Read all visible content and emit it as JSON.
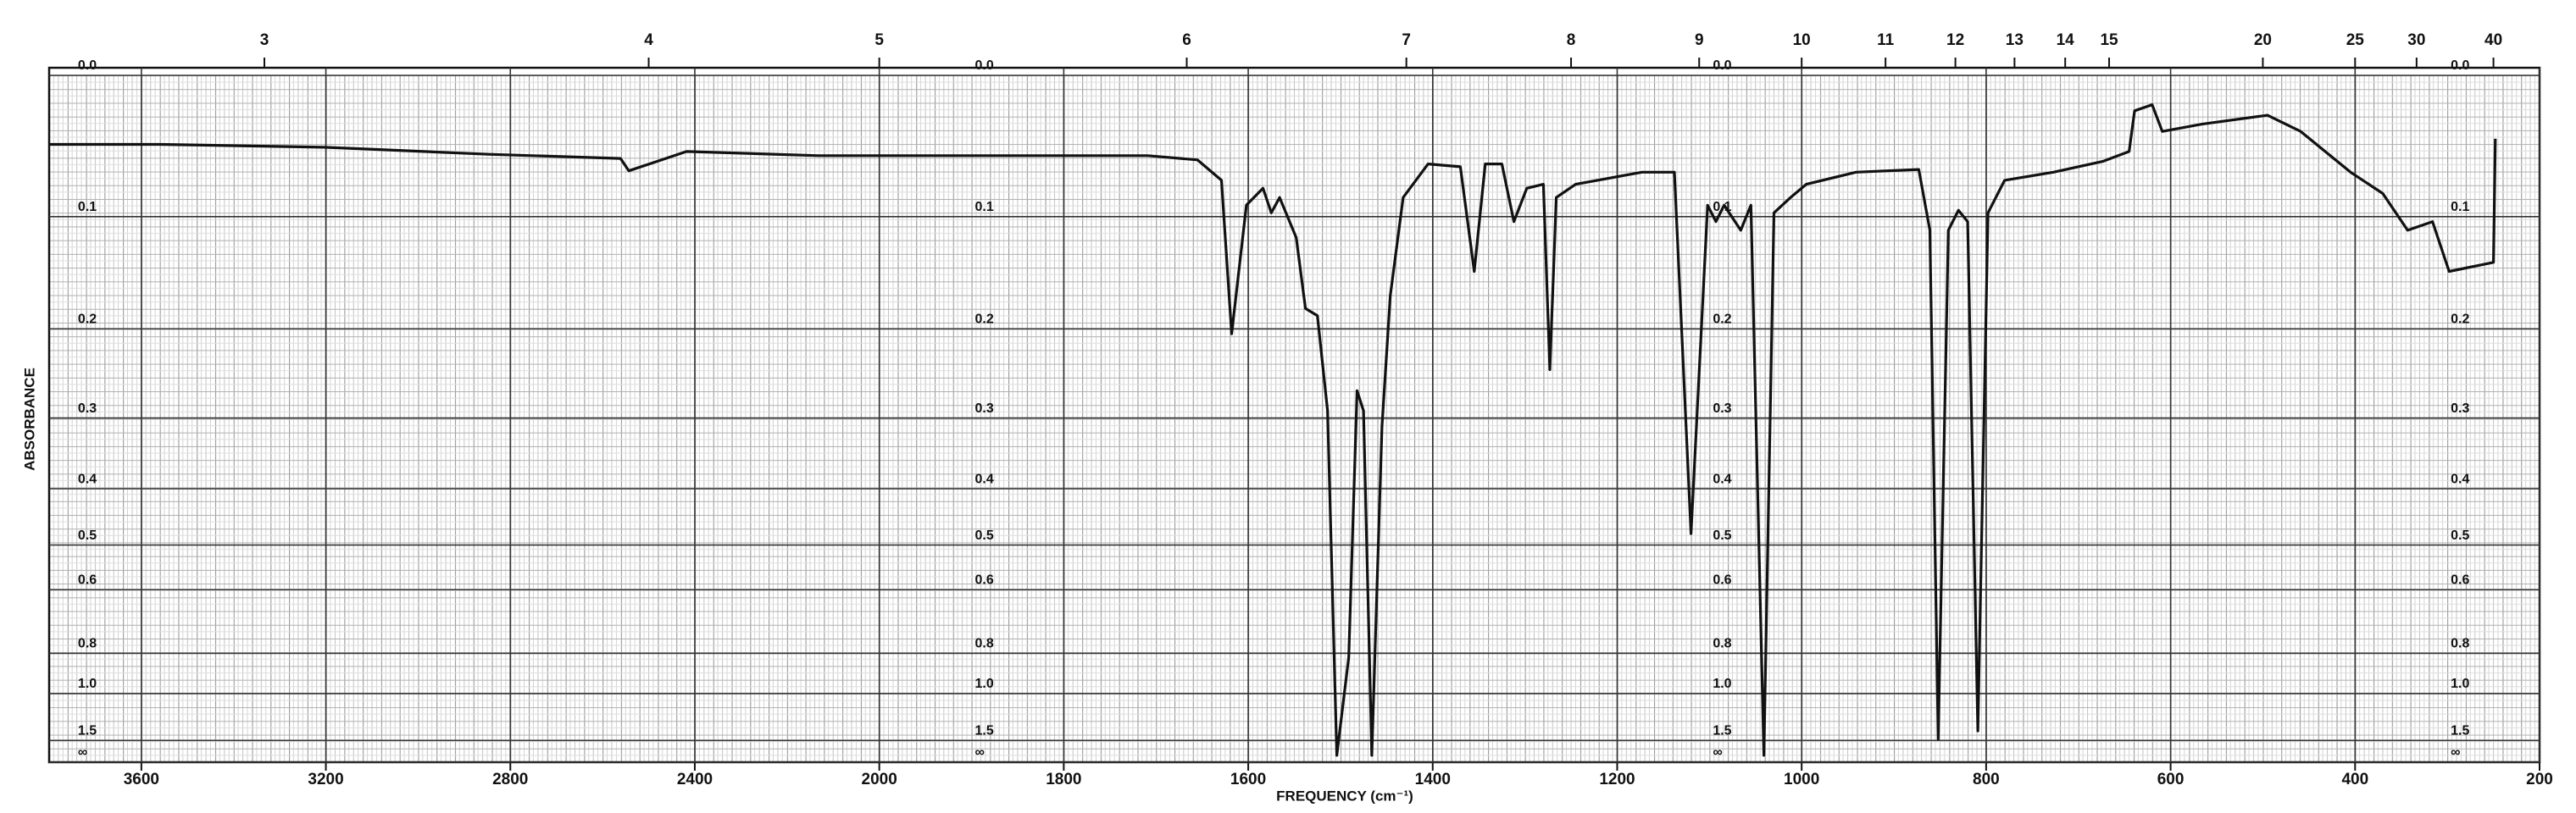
{
  "chart_data": {
    "type": "line",
    "x_label": "FREQUENCY (cm⁻¹)",
    "y_label": "ABSORBANCE",
    "xlim": [
      3800,
      200
    ],
    "xscale_break": 2000,
    "xticks": [
      3600,
      3200,
      2800,
      2400,
      2000,
      1800,
      1600,
      1400,
      1200,
      1000,
      800,
      600,
      400,
      200
    ],
    "x2ticks": [
      3,
      4,
      5,
      6,
      7,
      8,
      9,
      10,
      11,
      12,
      13,
      14,
      15,
      20,
      25,
      30,
      40
    ],
    "yscale": "absorbance",
    "ylim": [
      0,
      null
    ],
    "yticks": [
      {
        "value": 0,
        "label": "0.0"
      },
      0.1,
      0.2,
      0.3,
      0.4,
      0.5,
      0.6,
      0.8,
      {
        "value": 1,
        "label": "1.0"
      },
      1.5,
      {
        "value": null,
        "label": "∞"
      }
    ],
    "grid": true,
    "color": "#111111",
    "x": [
      3800,
      3560,
      3203,
      2846,
      2561,
      2543,
      2418,
      2132,
      1888,
      1709,
      1655,
      1629,
      1618,
      1602,
      1584,
      1575,
      1566,
      1548,
      1538,
      1525,
      1514,
      1504,
      1491,
      1482,
      1475,
      1466,
      1455,
      1446,
      1432,
      1405,
      1370,
      1355,
      1343,
      1325,
      1312,
      1298,
      1280,
      1273,
      1266,
      1245,
      1173,
      1138,
      1120,
      1102,
      1093,
      1084,
      1066,
      1055,
      1041,
      1030,
      1012,
      995,
      941,
      873,
      861,
      852,
      841,
      830,
      820,
      809,
      798,
      780,
      727,
      673,
      645,
      639,
      620,
      609,
      566,
      495,
      459,
      405,
      370,
      343,
      316,
      298,
      280,
      250,
      248
    ],
    "values": [
      0.046,
      0.046,
      0.048,
      0.053,
      0.056,
      0.065,
      0.051,
      0.054,
      0.054,
      0.054,
      0.057,
      0.072,
      0.205,
      0.091,
      0.078,
      0.097,
      0.085,
      0.117,
      0.18,
      0.187,
      0.291,
      2.0,
      0.815,
      0.267,
      0.291,
      2.0,
      0.311,
      0.168,
      0.085,
      0.06,
      0.062,
      0.146,
      0.06,
      0.06,
      0.104,
      0.078,
      0.075,
      0.243,
      0.085,
      0.075,
      0.066,
      0.066,
      0.478,
      0.091,
      0.104,
      0.091,
      0.111,
      0.091,
      2.0,
      0.097,
      0.085,
      0.075,
      0.066,
      0.064,
      0.111,
      1.475,
      0.111,
      0.095,
      0.104,
      1.342,
      0.097,
      0.072,
      0.066,
      0.058,
      0.051,
      0.023,
      0.019,
      0.037,
      0.032,
      0.026,
      0.037,
      0.066,
      0.082,
      0.111,
      0.104,
      0.146,
      0.143,
      0.138,
      0.042
    ]
  }
}
